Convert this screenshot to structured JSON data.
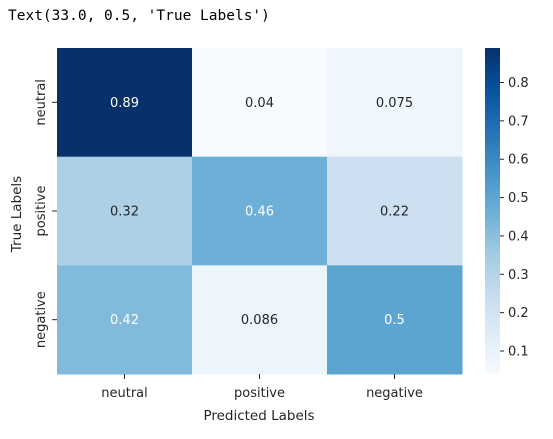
{
  "output_text": "Text(33.0, 0.5, 'True Labels')",
  "chart_data": {
    "type": "heatmap",
    "title": "",
    "xlabel": "Predicted Labels",
    "ylabel": "True Labels",
    "x_categories": [
      "neutral",
      "positive",
      "negative"
    ],
    "y_categories": [
      "neutral",
      "positive",
      "negative"
    ],
    "values": [
      [
        0.89,
        0.04,
        0.075
      ],
      [
        0.32,
        0.46,
        0.22
      ],
      [
        0.42,
        0.086,
        0.5
      ]
    ],
    "annotations": [
      [
        "0.89",
        "0.04",
        "0.075"
      ],
      [
        "0.32",
        "0.46",
        "0.22"
      ],
      [
        "0.42",
        "0.086",
        "0.5"
      ]
    ],
    "colormap": "Blues",
    "vmin": 0.04,
    "vmax": 0.89,
    "colorbar_ticks": [
      0.1,
      0.2,
      0.3,
      0.4,
      0.5,
      0.6,
      0.7,
      0.8
    ],
    "colorbar_tick_labels": [
      "0.1",
      "0.2",
      "0.3",
      "0.4",
      "0.5",
      "0.6",
      "0.7",
      "0.8"
    ],
    "grid": false
  }
}
